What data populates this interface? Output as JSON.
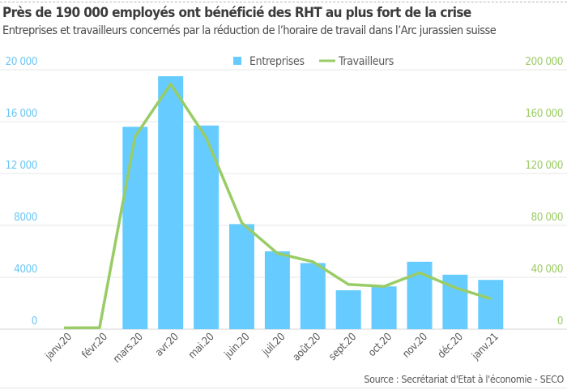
{
  "header": {
    "title": "Près de 190 000 employés ont bénéficié des RHT au plus fort de la crise",
    "subtitle": "Entreprises et travailleurs concernés par la réduction de l’horaire de travail dans l’Arc jurassien suisse"
  },
  "footer": {
    "source": "Source : Secrétariat d'Etat à l'économie - SECO"
  },
  "chart_data": {
    "type": "bar",
    "title": "Près de 190 000 employés ont bénéficié des RHT au plus fort de la crise",
    "subtitle": "Entreprises et travailleurs concernés par la réduction de l’horaire de travail dans l’Arc jurassien suisse",
    "categories": [
      "janv.20",
      "févr.20",
      "mars.20",
      "avr.20",
      "mai.20",
      "juin.20",
      "juil.20",
      "août.20",
      "sept.20",
      "oct.20",
      "nov.20",
      "déc.20",
      "janv.21"
    ],
    "series": [
      {
        "name": "Entreprises",
        "type": "bar",
        "axis": "left",
        "color": "#66ccff",
        "values": [
          0,
          0,
          15600,
          19500,
          15700,
          8100,
          6000,
          5100,
          3000,
          3300,
          5200,
          4200,
          3800
        ]
      },
      {
        "name": "Travailleurs",
        "type": "line",
        "axis": "right",
        "color": "#99cc66",
        "values": [
          1000,
          1200,
          148500,
          189000,
          147500,
          82000,
          58500,
          52000,
          34500,
          33000,
          43500,
          32000,
          23500
        ]
      }
    ],
    "left_axis": {
      "ylim": [
        0,
        20000
      ],
      "ticks": [
        0,
        4000,
        8000,
        12000,
        16000,
        20000
      ],
      "tick_labels": [
        "0",
        "4000",
        "8000",
        "12 000",
        "16 000",
        "20 000"
      ],
      "color": "#6cc8f5"
    },
    "right_axis": {
      "ylim": [
        0,
        200000
      ],
      "ticks": [
        0,
        40000,
        80000,
        120000,
        160000,
        200000
      ],
      "tick_labels": [
        "0",
        "40 000",
        "80 000",
        "120 000",
        "160 000",
        "200 000"
      ],
      "color": "#9ccc65"
    },
    "xlabel": "",
    "ylabel": "",
    "grid": true,
    "legend": {
      "position": "top-center",
      "entries": [
        "Entreprises",
        "Travailleurs"
      ]
    },
    "source": "Source : Secrétariat d'Etat à l'économie - SECO"
  }
}
